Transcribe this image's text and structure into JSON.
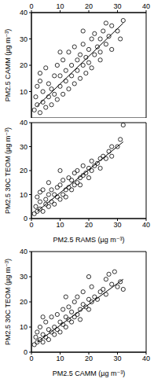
{
  "chart_data": [
    {
      "type": "scatter",
      "y_label": "PM2.5 CAMM (µg m⁻³)",
      "xlim": [
        0,
        40
      ],
      "xticks": [
        0,
        10,
        20,
        30,
        40
      ],
      "ylim": [
        0,
        40
      ],
      "yticks": [
        10,
        20,
        30,
        40
      ],
      "series": [
        {
          "type": "scatter",
          "marker": "open_circle",
          "color": "#000000",
          "x": [
            1,
            1.5,
            2,
            2,
            3,
            3,
            4,
            4,
            5,
            5,
            6,
            6,
            7,
            7,
            8,
            8,
            9,
            9,
            10,
            10,
            11,
            11,
            12,
            12,
            13,
            13,
            14,
            14,
            15,
            15,
            16,
            16,
            17,
            17,
            18,
            18,
            19,
            19,
            20,
            20,
            21,
            21,
            22,
            22,
            23,
            24,
            24,
            25,
            26,
            27,
            28,
            28,
            30,
            31,
            32,
            26,
            24,
            3,
            10,
            18
          ],
          "values": [
            3,
            8,
            12,
            5,
            2,
            14,
            6,
            10,
            4,
            19,
            8,
            13,
            5,
            11,
            16,
            9,
            7,
            20,
            12,
            16,
            9,
            22,
            14,
            18,
            11,
            25,
            16,
            20,
            13,
            27,
            18,
            22,
            15,
            24,
            20,
            28,
            17,
            23,
            26,
            21,
            30,
            19,
            24,
            32,
            27,
            25,
            30,
            33,
            28,
            31,
            35,
            26,
            33,
            30,
            37,
            36,
            22,
            17,
            25,
            33
          ]
        },
        {
          "type": "line",
          "line_style": "solid",
          "color": "#000000",
          "x": [
            2,
            32
          ],
          "values": [
            4.5,
            36
          ]
        }
      ]
    },
    {
      "type": "scatter",
      "x_label": "PM2.5 RAMS (µg m⁻³)",
      "y_label": "PM2.5 30C TEOM (µg m⁻³)",
      "xlim": [
        0,
        40
      ],
      "xticks": [
        0,
        10,
        20,
        30,
        40
      ],
      "ylim": [
        0,
        40
      ],
      "yticks": [
        0,
        10,
        20,
        30,
        40
      ],
      "series": [
        {
          "type": "scatter",
          "marker": "open_circle",
          "color": "#000000",
          "x": [
            1,
            1.5,
            2,
            2,
            3,
            3,
            4,
            4,
            5,
            5,
            6,
            6,
            7,
            7,
            8,
            8,
            9,
            9,
            10,
            10,
            11,
            11,
            12,
            12,
            13,
            13,
            14,
            14,
            15,
            15,
            16,
            16,
            17,
            17,
            18,
            18,
            19,
            20,
            20,
            21,
            21,
            22,
            23,
            24,
            24,
            25,
            26,
            27,
            28,
            28,
            30,
            31,
            32,
            6,
            3,
            10
          ],
          "values": [
            2,
            5,
            3,
            9,
            4,
            7,
            3,
            12,
            6,
            8,
            5,
            10,
            7,
            12,
            6,
            10,
            9,
            13,
            8,
            14,
            10,
            16,
            12,
            9,
            13,
            17,
            12,
            16,
            14,
            19,
            15,
            20,
            17,
            14,
            18,
            22,
            19,
            21,
            17,
            20,
            24,
            22,
            23,
            25,
            21,
            26,
            25,
            28,
            26,
            30,
            30,
            33,
            39,
            15,
            11,
            20
          ]
        },
        {
          "type": "line",
          "line_style": "solid",
          "color": "#000000",
          "x": [
            2,
            32
          ],
          "values": [
            3,
            32
          ]
        }
      ]
    },
    {
      "type": "scatter",
      "x_label": "PM2.5 CAMM (µg m⁻³)",
      "y_label": "PM2.5 30C TEOM (µg m⁻³)",
      "xlim": [
        0,
        40
      ],
      "xticks": [
        0,
        10,
        20,
        30,
        40
      ],
      "ylim": [
        0,
        40
      ],
      "yticks": [
        0,
        10,
        20,
        30,
        40
      ],
      "series": [
        {
          "type": "scatter",
          "marker": "open_circle",
          "color": "#000000",
          "x": [
            1,
            1.5,
            2,
            2,
            3,
            3,
            4,
            4,
            5,
            5,
            6,
            6,
            7,
            7,
            8,
            8,
            9,
            9,
            10,
            10,
            11,
            11,
            12,
            12,
            13,
            13,
            14,
            14,
            15,
            15,
            16,
            16,
            17,
            17,
            18,
            18,
            19,
            20,
            20,
            21,
            21,
            22,
            23,
            24,
            25,
            26,
            26,
            27,
            28,
            29,
            30,
            31,
            32,
            4,
            12,
            20
          ],
          "values": [
            3,
            6,
            4,
            8,
            5,
            10,
            4,
            7,
            6,
            12,
            5,
            9,
            8,
            14,
            7,
            10,
            9,
            15,
            8,
            12,
            11,
            17,
            10,
            14,
            13,
            18,
            12,
            16,
            14,
            20,
            15,
            22,
            17,
            13,
            19,
            24,
            18,
            21,
            17,
            20,
            26,
            22,
            21,
            24,
            25,
            23,
            29,
            31,
            27,
            32,
            26,
            28,
            25,
            14,
            22,
            30
          ]
        },
        {
          "type": "line",
          "line_style": "solid",
          "color": "#000000",
          "x": [
            2,
            32
          ],
          "values": [
            4,
            29
          ]
        }
      ]
    }
  ]
}
